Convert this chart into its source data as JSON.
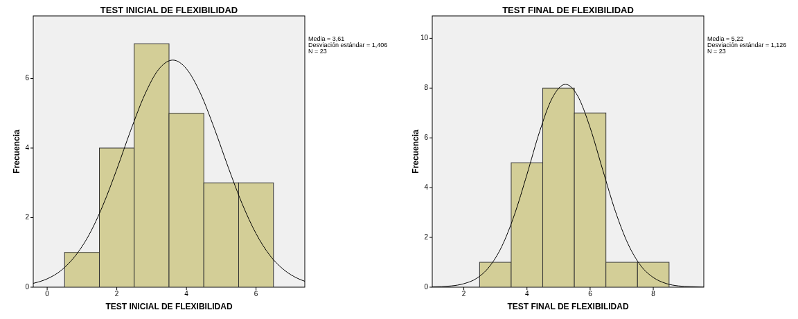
{
  "chart_data": [
    {
      "type": "histogram",
      "title": "TEST INICIAL DE FLEXIBILIDAD",
      "xlabel": "TEST INICIAL DE FLEXIBILIDAD",
      "ylabel": "Frecuencia",
      "annotations": [
        "Media = 3,61",
        "Desviación estándar = 1,406",
        "N = 23"
      ],
      "xlim": [
        -0.4,
        7.4
      ],
      "xticks": [
        0,
        2,
        4,
        6
      ],
      "ylim": [
        0,
        7.8
      ],
      "yticks": [
        0,
        2,
        4,
        6
      ],
      "grid": false,
      "series": [
        {
          "color": "#d3ce97",
          "bins": [
            0.5,
            1.5,
            2.5,
            3.5,
            4.5,
            5.5,
            6.5
          ],
          "values": [
            1,
            4,
            7,
            5,
            3,
            3
          ]
        },
        {
          "type": "line",
          "color": "#000000",
          "x": [
            -0.4,
            0,
            0.4,
            0.8,
            1.2,
            1.6,
            2,
            2.4,
            2.8,
            3.2,
            3.61,
            4,
            4.4,
            4.8,
            5.2,
            5.6,
            6,
            6.4,
            6.8,
            7.2,
            7.4
          ],
          "values": [
            0.11,
            0.24,
            0.48,
            0.89,
            1.5,
            2.35,
            3.39,
            4.51,
            5.53,
            6.26,
            6.53,
            6.28,
            5.58,
            4.57,
            3.45,
            2.4,
            1.54,
            0.91,
            0.5,
            0.25,
            0.17
          ]
        }
      ]
    },
    {
      "type": "histogram",
      "title": "TEST FINAL DE FLEXIBILIDAD",
      "xlabel": "TEST FINAL DE FLEXIBILIDAD",
      "ylabel": "Frecuencia",
      "annotations": [
        "Media = 5,22",
        "Desviación estándar = 1,126",
        "N = 23"
      ],
      "xlim": [
        1,
        9.6
      ],
      "xticks": [
        2,
        4,
        6,
        8
      ],
      "ylim": [
        0,
        10.9
      ],
      "yticks": [
        0,
        2,
        4,
        6,
        8,
        10
      ],
      "grid": false,
      "series": [
        {
          "color": "#d3ce97",
          "bins": [
            2.5,
            3.5,
            4.5,
            5.5,
            6.5,
            7.5,
            8.5
          ],
          "values": [
            1,
            5,
            8,
            7,
            1,
            1
          ]
        },
        {
          "type": "line",
          "color": "#000000",
          "x": [
            1,
            1.6,
            2,
            2.4,
            2.8,
            3.2,
            3.6,
            4,
            4.4,
            4.8,
            5.22,
            5.6,
            6,
            6.4,
            6.8,
            7.2,
            7.6,
            8,
            8.4,
            8.8,
            9.2,
            9.6
          ],
          "values": [
            0.01,
            0.05,
            0.14,
            0.35,
            0.81,
            1.63,
            2.9,
            4.53,
            6.25,
            7.6,
            8.15,
            7.7,
            6.41,
            4.71,
            3.05,
            1.74,
            0.87,
            0.39,
            0.15,
            0.05,
            0.02,
            0
          ]
        }
      ]
    }
  ]
}
